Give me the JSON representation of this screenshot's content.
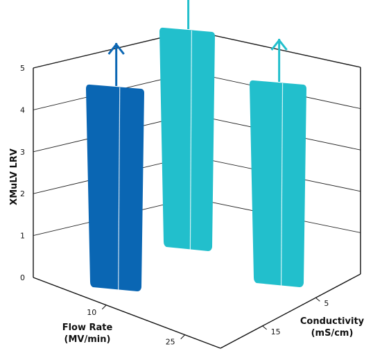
{
  "chart_data": {
    "type": "bar",
    "title": "",
    "ylabel": "XMuLV LRV",
    "xlabel": "Flow Rate (MV/min)",
    "zlabel": "Conductivity (mS/cm)",
    "ylim": [
      0,
      5
    ],
    "yticks": [
      "0",
      "1",
      "2",
      "3",
      "4",
      "5"
    ],
    "x_categories": [
      "10",
      "25"
    ],
    "z_categories": [
      "5",
      "15"
    ],
    "bars": [
      {
        "flow_rate": "10",
        "conductivity": "5",
        "value": 5,
        "greater_than": true,
        "color": "#0a66b3"
      },
      {
        "flow_rate": "10",
        "conductivity": "15",
        "value": 5.4,
        "greater_than": true,
        "color": "#22bfcc"
      },
      {
        "flow_rate": "25",
        "conductivity": "15",
        "value": 5,
        "greater_than": true,
        "color": "#22bfcc"
      }
    ],
    "labels": {
      "ylabel": "XMuLV LRV",
      "xlabel_line1": "Flow Rate",
      "xlabel_line2": "(MV/min)",
      "zlabel_line1": "Conductivity",
      "zlabel_line2": "(mS/cm)"
    },
    "colors": {
      "dark_blue": "#0a66b3",
      "cyan": "#22bfcc"
    },
    "grid": true
  }
}
